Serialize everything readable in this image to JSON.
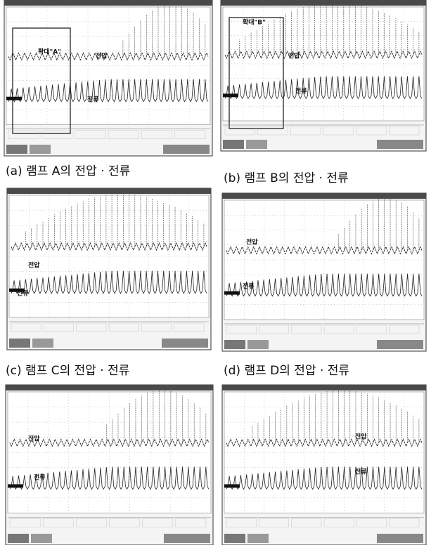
{
  "panels": [
    {
      "caption": "(a) 램프 A의 전압 · 전류",
      "labels": [
        "확대\"A\"",
        "전압",
        "전류"
      ]
    },
    {
      "caption": "(b) 램프 B의 전압 · 전류",
      "labels": [
        "확대\"B\"",
        "전압",
        "전류"
      ]
    },
    {
      "caption": "(c) 램프 C의 전압 · 전류",
      "labels": [
        "전압",
        "전류"
      ]
    },
    {
      "caption": "(d) 램프 D의 전압 · 전류",
      "labels": [
        "전압",
        "전류"
      ]
    },
    {
      "labels": [
        "전압",
        "전류"
      ]
    },
    {
      "labels": [
        "전압",
        "전류"
      ]
    }
  ]
}
